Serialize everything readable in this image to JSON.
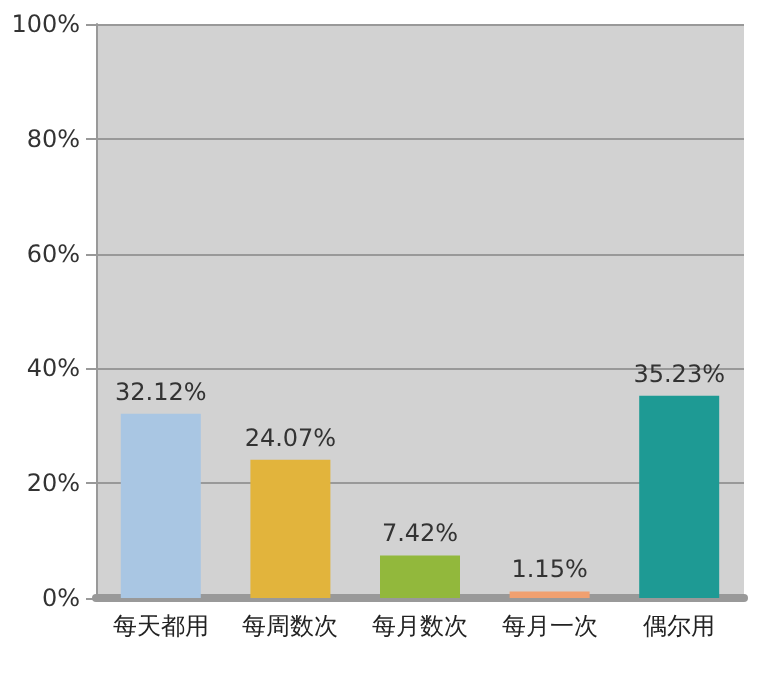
{
  "chart_data": {
    "type": "bar",
    "categories": [
      "每天都用",
      "每周数次",
      "每月数次",
      "每月一次",
      "偶尔用"
    ],
    "values": [
      32.12,
      24.07,
      7.42,
      1.15,
      35.23
    ],
    "colors": [
      "#a9c6e3",
      "#e2b43c",
      "#92b83c",
      "#f0a070",
      "#1e9a94"
    ],
    "value_labels": [
      "32.12%",
      "24.07%",
      "7.42%",
      "1.15%",
      "35.23%"
    ],
    "ylim": [
      0,
      100
    ],
    "yticks": [
      {
        "value": 0,
        "label": "0%"
      },
      {
        "value": 20,
        "label": "20%"
      },
      {
        "value": 40,
        "label": "40%"
      },
      {
        "value": 60,
        "label": "60%"
      },
      {
        "value": 80,
        "label": "80%"
      },
      {
        "value": 100,
        "label": "100%"
      }
    ],
    "grid": "y"
  }
}
